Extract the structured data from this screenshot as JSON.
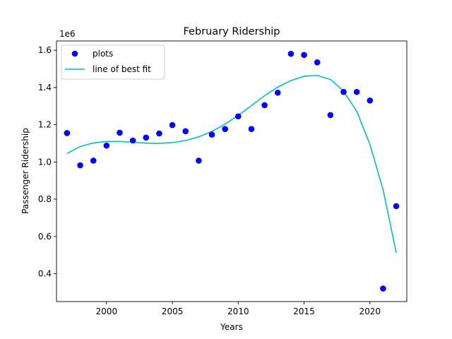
{
  "chart_data": {
    "type": "scatter",
    "title": "February Ridership",
    "xlabel": "Years",
    "ylabel": "Passenger Ridership",
    "y_offset_label": "1e6",
    "xlim": [
      1996.2,
      2022.8
    ],
    "ylim": [
      250000,
      1650000
    ],
    "x_ticks": [
      2000,
      2005,
      2010,
      2015,
      2020
    ],
    "y_ticks": [
      400000,
      600000,
      800000,
      1000000,
      1200000,
      1400000,
      1600000
    ],
    "y_tick_labels": [
      "0.4",
      "0.6",
      "0.8",
      "1.0",
      "1.2",
      "1.4",
      "1.6"
    ],
    "grid": false,
    "legend_position": "top-left",
    "series": [
      {
        "name": "plots",
        "kind": "scatter",
        "color": "#0000ff",
        "x": [
          1997,
          1998,
          1999,
          2000,
          2001,
          2002,
          2003,
          2004,
          2005,
          2006,
          2007,
          2008,
          2009,
          2010,
          2011,
          2012,
          2013,
          2014,
          2015,
          2016,
          2017,
          2018,
          2019,
          2020,
          2021,
          2022
        ],
        "y": [
          1155000,
          982000,
          1007000,
          1088000,
          1157000,
          1115000,
          1131000,
          1153000,
          1198000,
          1165000,
          1007000,
          1147000,
          1177000,
          1245000,
          1177000,
          1305000,
          1372000,
          1581000,
          1575000,
          1535000,
          1252000,
          1376000,
          1376000,
          1330000,
          320000,
          763000
        ]
      },
      {
        "name": "line of best fit",
        "kind": "line",
        "color": "#00bfbf",
        "x": [
          1997,
          1998,
          1999,
          2000,
          2001,
          2002,
          2003,
          2004,
          2005,
          2006,
          2007,
          2008,
          2009,
          2010,
          2011,
          2012,
          2013,
          2014,
          2015,
          2016,
          2017,
          2018,
          2019,
          2020,
          2021,
          2022
        ],
        "y": [
          1045000,
          1083000,
          1102000,
          1110000,
          1110000,
          1106000,
          1101000,
          1100000,
          1104000,
          1115000,
          1135000,
          1164000,
          1203000,
          1250000,
          1302000,
          1356000,
          1402000,
          1437000,
          1460000,
          1465000,
          1443000,
          1380000,
          1272000,
          1095000,
          850000,
          512000
        ]
      }
    ]
  }
}
